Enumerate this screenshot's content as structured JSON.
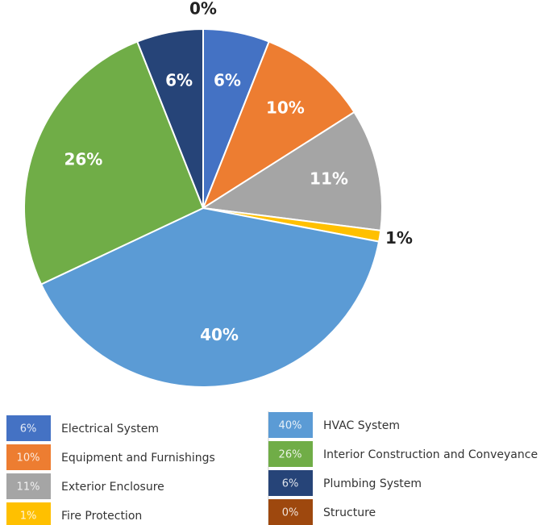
{
  "chart_data": {
    "type": "pie",
    "categories": [
      "Electrical System",
      "Equipment and Furnishings",
      "Exterior Enclosure",
      "Fire Protection",
      "HVAC System",
      "Interior Construction and Conveyance",
      "Plumbing System",
      "Structure"
    ],
    "values": [
      6,
      10,
      11,
      1,
      40,
      26,
      6,
      0
    ],
    "value_labels": [
      "6%",
      "10%",
      "11%",
      "1%",
      "40%",
      "26%",
      "6%",
      "0%"
    ],
    "colors": [
      "#4472c4",
      "#ed7d31",
      "#a5a5a5",
      "#ffc000",
      "#5b9bd5",
      "#70ad47",
      "#264478",
      "#9e480e"
    ]
  }
}
